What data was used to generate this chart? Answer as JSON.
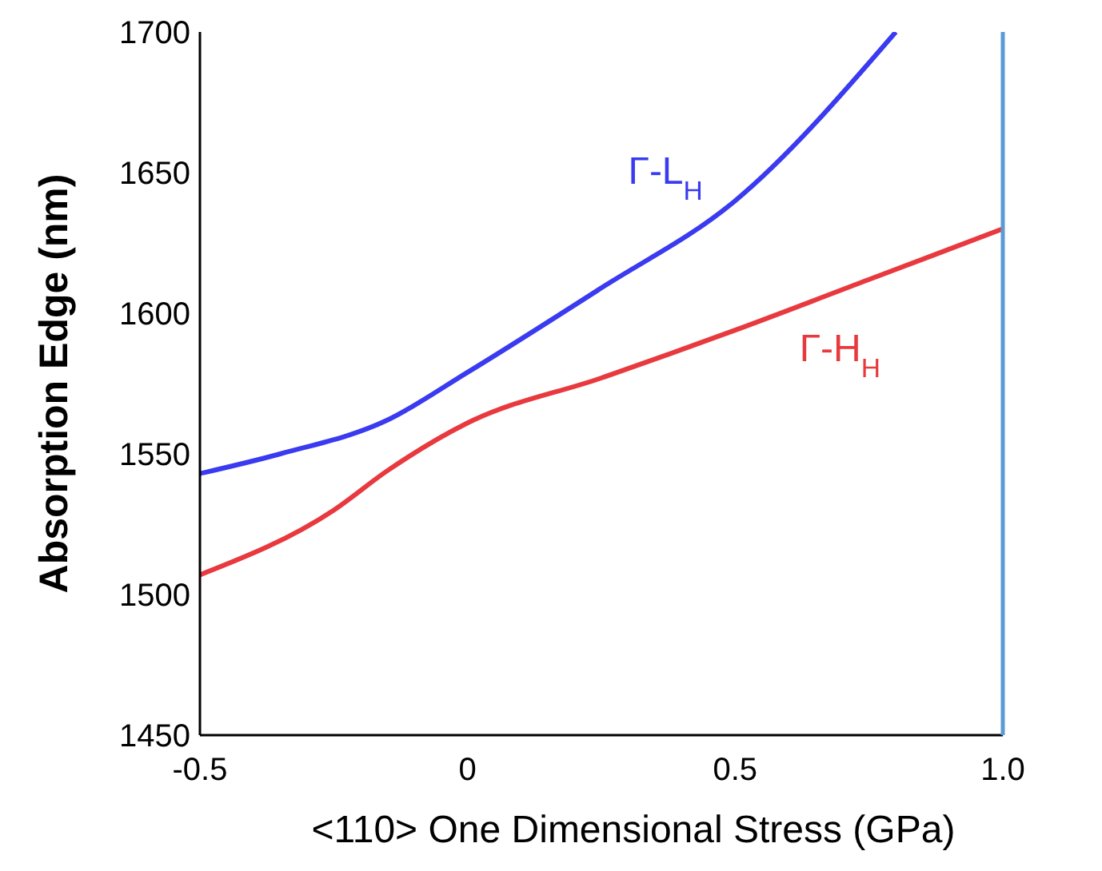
{
  "chart_data": {
    "type": "line",
    "xlabel": "<110> One Dimensional Stress (GPa)",
    "ylabel": "Absorption Edge (nm)",
    "xlim": [
      -0.5,
      1.0
    ],
    "ylim": [
      1450,
      1700
    ],
    "xticks": [
      -0.5,
      0,
      0.5,
      {
        "value": 1,
        "label": "1.0"
      }
    ],
    "yticks": [
      1450,
      1500,
      1550,
      1600,
      1650,
      1700
    ],
    "grid": false,
    "marker": "none",
    "line_style": "solid",
    "series": [
      {
        "name": "Γ-L$_{H}$",
        "color": "#3a3af0",
        "x": [
          -0.5,
          -0.35,
          -0.15,
          0,
          0.25,
          0.5,
          0.8
        ],
        "values": [
          1543,
          1550,
          1562,
          1579,
          1609,
          1640,
          1700
        ]
      },
      {
        "name": "Γ-H$_{H}$",
        "color": "#e8393f",
        "x": [
          -0.5,
          -0.25,
          -0.15,
          0,
          0.25,
          0.5,
          0.75,
          1.0
        ],
        "values": [
          1507,
          1530,
          1544,
          1561,
          1577,
          1594,
          1612,
          1630
        ]
      }
    ]
  }
}
